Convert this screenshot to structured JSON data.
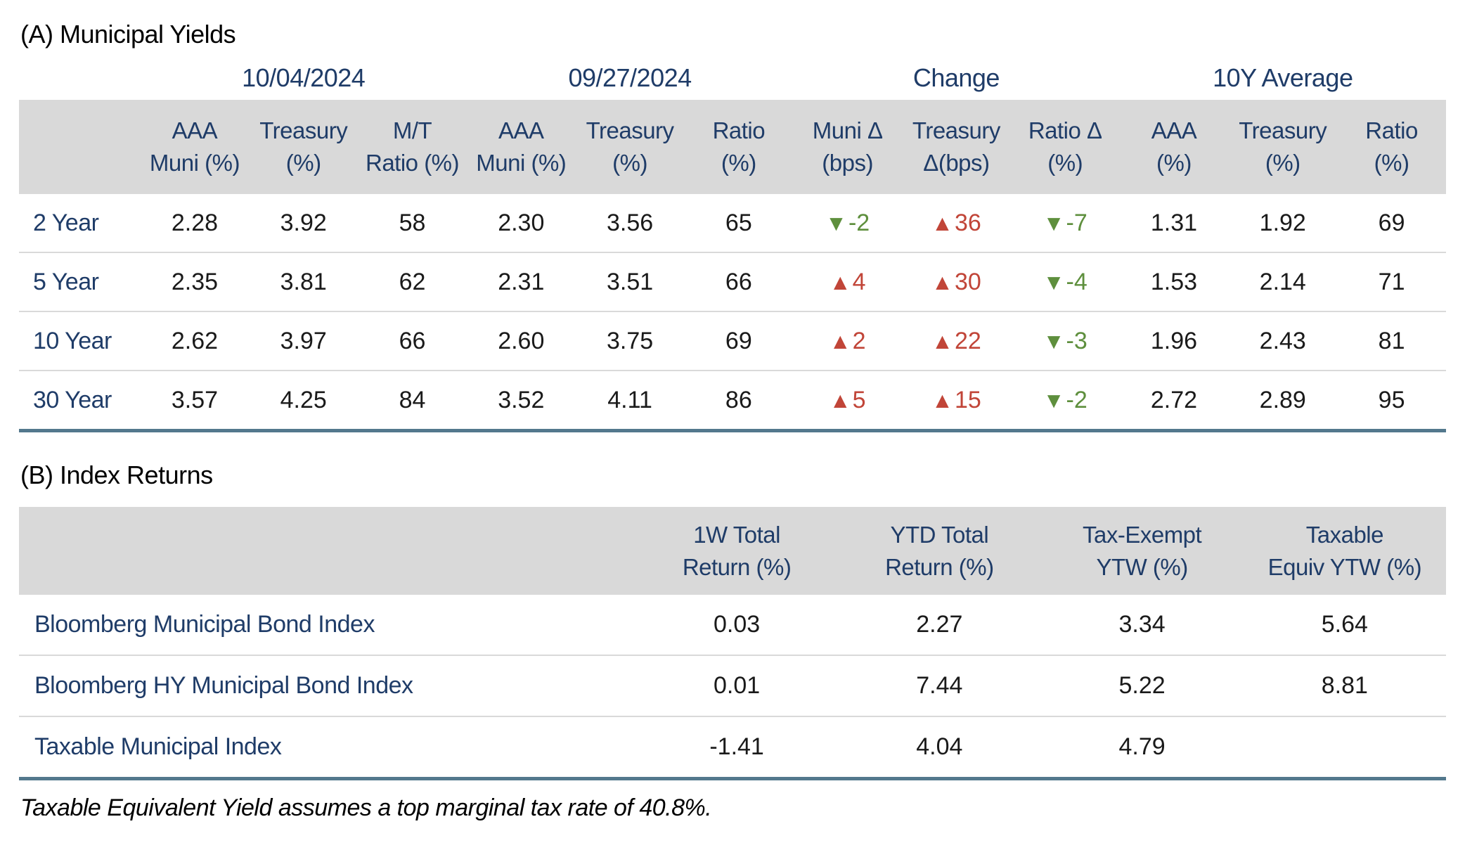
{
  "colors": {
    "navy": "#1f3c68",
    "header_band": "#d9d9d9",
    "bottom_border_blue": "#53788d",
    "up_triangle_red": "#c14538",
    "down_triangle_green": "#5e8f3d"
  },
  "tableA": {
    "section_title": "(A) Municipal Yields",
    "group_headers": [
      "10/04/2024",
      "09/27/2024",
      "Change",
      "10Y Average"
    ],
    "columns": [
      {
        "top": "AAA",
        "bottom": "Muni (%)"
      },
      {
        "top": "Treasury",
        "bottom": "(%)"
      },
      {
        "top": "M/T",
        "bottom": "Ratio (%)"
      },
      {
        "top": "AAA",
        "bottom": "Muni (%)"
      },
      {
        "top": "Treasury",
        "bottom": "(%)"
      },
      {
        "top": "Ratio",
        "bottom": "(%)"
      },
      {
        "top": "Muni Δ",
        "bottom": "(bps)"
      },
      {
        "top": "Treasury",
        "bottom": "Δ(bps)"
      },
      {
        "top": "Ratio Δ",
        "bottom": "(%)"
      },
      {
        "top": "AAA",
        "bottom": "(%)"
      },
      {
        "top": "Treasury",
        "bottom": "(%)"
      },
      {
        "top": "Ratio",
        "bottom": "(%)"
      }
    ],
    "rows": [
      {
        "label": "2 Year",
        "cur": [
          "2.28",
          "3.92",
          "58"
        ],
        "prev": [
          "2.30",
          "3.56",
          "65"
        ],
        "chg": [
          {
            "dir": "down",
            "glyph": "▼",
            "value": "-2"
          },
          {
            "dir": "up",
            "glyph": "▲",
            "value": "36"
          },
          {
            "dir": "down",
            "glyph": "▼",
            "value": "-7"
          }
        ],
        "avg": [
          "1.31",
          "1.92",
          "69"
        ]
      },
      {
        "label": "5 Year",
        "cur": [
          "2.35",
          "3.81",
          "62"
        ],
        "prev": [
          "2.31",
          "3.51",
          "66"
        ],
        "chg": [
          {
            "dir": "up",
            "glyph": "▲",
            "value": "4"
          },
          {
            "dir": "up",
            "glyph": "▲",
            "value": "30"
          },
          {
            "dir": "down",
            "glyph": "▼",
            "value": "-4"
          }
        ],
        "avg": [
          "1.53",
          "2.14",
          "71"
        ]
      },
      {
        "label": "10 Year",
        "cur": [
          "2.62",
          "3.97",
          "66"
        ],
        "prev": [
          "2.60",
          "3.75",
          "69"
        ],
        "chg": [
          {
            "dir": "up",
            "glyph": "▲",
            "value": "2"
          },
          {
            "dir": "up",
            "glyph": "▲",
            "value": "22"
          },
          {
            "dir": "down",
            "glyph": "▼",
            "value": "-3"
          }
        ],
        "avg": [
          "1.96",
          "2.43",
          "81"
        ]
      },
      {
        "label": "30 Year",
        "cur": [
          "3.57",
          "4.25",
          "84"
        ],
        "prev": [
          "3.52",
          "4.11",
          "86"
        ],
        "chg": [
          {
            "dir": "up",
            "glyph": "▲",
            "value": "5"
          },
          {
            "dir": "up",
            "glyph": "▲",
            "value": "15"
          },
          {
            "dir": "down",
            "glyph": "▼",
            "value": "-2"
          }
        ],
        "avg": [
          "2.72",
          "2.89",
          "95"
        ]
      }
    ]
  },
  "tableB": {
    "section_title": "(B) Index Returns",
    "columns": [
      {
        "top": "1W Total",
        "bottom": "Return (%)"
      },
      {
        "top": "YTD Total",
        "bottom": "Return (%)"
      },
      {
        "top": "Tax-Exempt",
        "bottom": "YTW (%)"
      },
      {
        "top": "Taxable",
        "bottom": "Equiv YTW (%)"
      }
    ],
    "rows": [
      {
        "label": "Bloomberg Municipal Bond Index",
        "values": [
          "0.03",
          "2.27",
          "3.34",
          "5.64"
        ]
      },
      {
        "label": "Bloomberg HY Municipal Bond Index",
        "values": [
          "0.01",
          "7.44",
          "5.22",
          "8.81"
        ]
      },
      {
        "label": "Taxable Municipal Index",
        "values": [
          "-1.41",
          "4.04",
          "4.79",
          ""
        ]
      }
    ]
  },
  "footnote": "Taxable Equivalent Yield assumes a top marginal tax rate of 40.8%."
}
